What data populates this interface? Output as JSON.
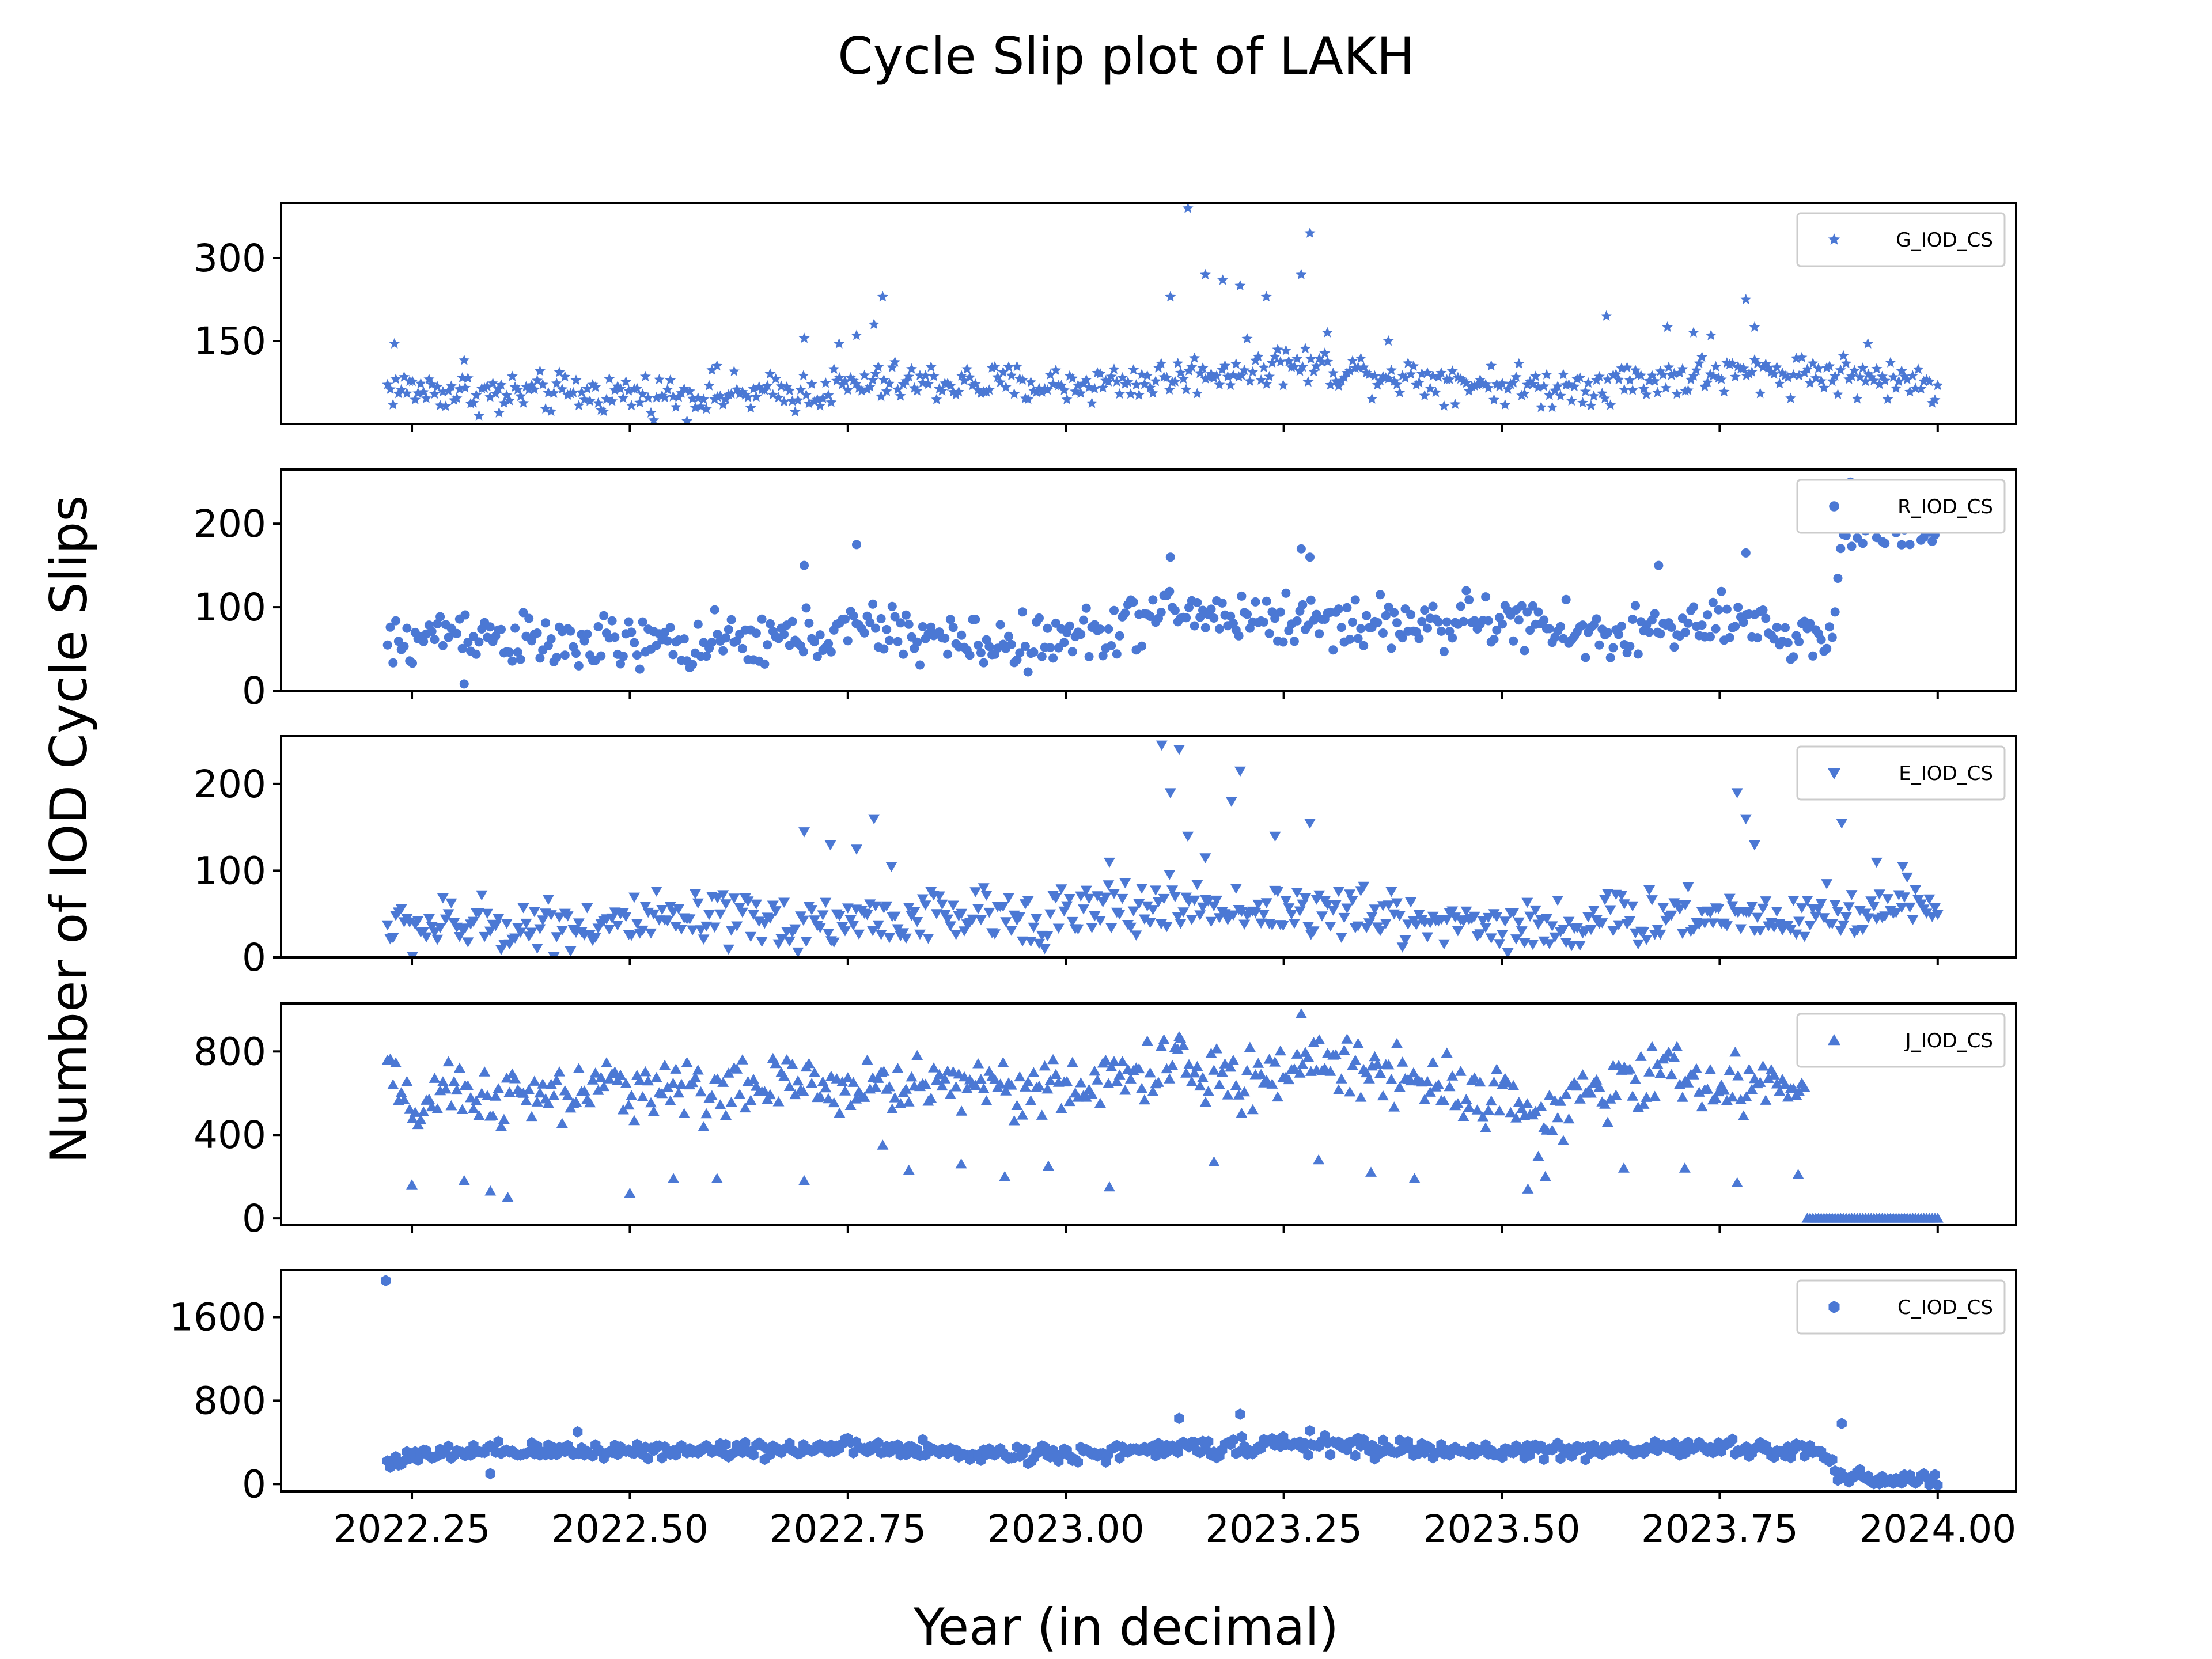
{
  "figure": {
    "title": "Cycle Slip plot of LAKH",
    "xlabel": "Year (in decimal)",
    "ylabel": "Number of IOD Cycle Slips",
    "marker_color": "#4b78d4"
  },
  "chart_data": [
    {
      "type": "scatter",
      "series_name": "G_IOD_CS",
      "marker": "star",
      "xlim": [
        2022.1,
        2024.09
      ],
      "ylim": [
        0,
        400
      ],
      "yticks": [
        150,
        300
      ],
      "xticks": [
        2022.25,
        2022.5,
        2022.75,
        2023.0,
        2023.25,
        2023.5,
        2023.75,
        2024.0
      ],
      "grid": false,
      "legend_position": "top-right",
      "baseline_trend": [
        [
          2022.22,
          65
        ],
        [
          2022.35,
          55
        ],
        [
          2022.5,
          55
        ],
        [
          2022.65,
          52
        ],
        [
          2022.8,
          75
        ],
        [
          2023.0,
          70
        ],
        [
          2023.1,
          80
        ],
        [
          2023.25,
          110
        ],
        [
          2023.4,
          85
        ],
        [
          2023.55,
          65
        ],
        [
          2023.7,
          85
        ],
        [
          2023.85,
          95
        ],
        [
          2024.0,
          70
        ]
      ],
      "spread": 18,
      "peaks": [
        [
          2022.23,
          145
        ],
        [
          2022.31,
          115
        ],
        [
          2022.35,
          20
        ],
        [
          2022.6,
          105
        ],
        [
          2022.7,
          155
        ],
        [
          2022.74,
          145
        ],
        [
          2022.76,
          160
        ],
        [
          2022.78,
          180
        ],
        [
          2022.79,
          230
        ],
        [
          2023.12,
          230
        ],
        [
          2023.14,
          390
        ],
        [
          2023.16,
          270
        ],
        [
          2023.18,
          260
        ],
        [
          2023.2,
          250
        ],
        [
          2023.23,
          230
        ],
        [
          2023.27,
          270
        ],
        [
          2023.28,
          345
        ],
        [
          2023.3,
          165
        ],
        [
          2023.37,
          150
        ],
        [
          2023.62,
          195
        ],
        [
          2023.69,
          175
        ],
        [
          2023.72,
          165
        ],
        [
          2023.74,
          160
        ],
        [
          2023.78,
          225
        ],
        [
          2023.79,
          175
        ],
        [
          2023.92,
          145
        ]
      ]
    },
    {
      "type": "scatter",
      "series_name": "R_IOD_CS",
      "marker": "circle",
      "xlim": [
        2022.1,
        2024.09
      ],
      "ylim": [
        0,
        265
      ],
      "yticks": [
        0,
        100,
        200
      ],
      "xticks": [
        2022.25,
        2022.5,
        2022.75,
        2023.0,
        2023.25,
        2023.5,
        2023.75,
        2024.0
      ],
      "grid": false,
      "legend_position": "top-right",
      "baseline_trend": [
        [
          2022.22,
          50
        ],
        [
          2022.3,
          75
        ],
        [
          2022.4,
          55
        ],
        [
          2022.6,
          55
        ],
        [
          2022.7,
          65
        ],
        [
          2022.78,
          75
        ],
        [
          2022.9,
          55
        ],
        [
          2023.0,
          60
        ],
        [
          2023.12,
          95
        ],
        [
          2023.25,
          85
        ],
        [
          2023.4,
          80
        ],
        [
          2023.5,
          85
        ],
        [
          2023.6,
          65
        ],
        [
          2023.75,
          80
        ],
        [
          2023.88,
          60
        ],
        [
          2023.89,
          195
        ],
        [
          2024.0,
          200
        ]
      ],
      "spread": 16,
      "peaks": [
        [
          2022.31,
          8
        ],
        [
          2022.7,
          150
        ],
        [
          2022.76,
          175
        ],
        [
          2023.12,
          160
        ],
        [
          2023.27,
          170
        ],
        [
          2023.28,
          160
        ],
        [
          2023.68,
          150
        ],
        [
          2023.78,
          165
        ],
        [
          2023.9,
          250
        ],
        [
          2023.93,
          240
        ],
        [
          2023.96,
          235
        ]
      ]
    },
    {
      "type": "scatter",
      "series_name": "E_IOD_CS",
      "marker": "triangle-down",
      "xlim": [
        2022.1,
        2024.09
      ],
      "ylim": [
        0,
        255
      ],
      "yticks": [
        0,
        100,
        200
      ],
      "xticks": [
        2022.25,
        2022.5,
        2022.75,
        2023.0,
        2023.25,
        2023.5,
        2023.75,
        2024.0
      ],
      "grid": false,
      "legend_position": "top-right",
      "baseline_trend": [
        [
          2022.22,
          35
        ],
        [
          2022.5,
          40
        ],
        [
          2022.7,
          40
        ],
        [
          2022.8,
          45
        ],
        [
          2023.0,
          50
        ],
        [
          2023.12,
          60
        ],
        [
          2023.25,
          55
        ],
        [
          2023.4,
          45
        ],
        [
          2023.55,
          35
        ],
        [
          2023.7,
          50
        ],
        [
          2023.85,
          50
        ],
        [
          2024.0,
          60
        ]
      ],
      "spread": 16,
      "peaks": [
        [
          2022.7,
          145
        ],
        [
          2022.73,
          130
        ],
        [
          2022.76,
          125
        ],
        [
          2022.78,
          160
        ],
        [
          2022.8,
          105
        ],
        [
          2023.05,
          110
        ],
        [
          2023.11,
          245
        ],
        [
          2023.12,
          190
        ],
        [
          2023.13,
          240
        ],
        [
          2023.14,
          140
        ],
        [
          2023.16,
          115
        ],
        [
          2023.19,
          180
        ],
        [
          2023.2,
          215
        ],
        [
          2023.24,
          140
        ],
        [
          2023.28,
          155
        ],
        [
          2023.77,
          190
        ],
        [
          2023.78,
          160
        ],
        [
          2023.79,
          130
        ],
        [
          2023.89,
          155
        ],
        [
          2023.93,
          110
        ],
        [
          2023.96,
          105
        ]
      ]
    },
    {
      "type": "scatter",
      "series_name": "J_IOD_CS",
      "marker": "triangle-up",
      "xlim": [
        2022.1,
        2024.09
      ],
      "ylim": [
        -30,
        1030
      ],
      "yticks": [
        0,
        400,
        800
      ],
      "xticks": [
        2022.25,
        2022.5,
        2022.75,
        2023.0,
        2023.25,
        2023.5,
        2023.75,
        2024.0
      ],
      "grid": false,
      "legend_position": "top-right",
      "baseline_trend": [
        [
          2022.22,
          780
        ],
        [
          2022.24,
          500
        ],
        [
          2022.3,
          600
        ],
        [
          2022.4,
          570
        ],
        [
          2022.5,
          640
        ],
        [
          2022.6,
          610
        ],
        [
          2022.7,
          640
        ],
        [
          2022.8,
          630
        ],
        [
          2022.9,
          660
        ],
        [
          2023.0,
          610
        ],
        [
          2023.12,
          740
        ],
        [
          2023.2,
          640
        ],
        [
          2023.28,
          760
        ],
        [
          2023.4,
          680
        ],
        [
          2023.5,
          580
        ],
        [
          2023.55,
          470
        ],
        [
          2023.62,
          610
        ],
        [
          2023.68,
          720
        ],
        [
          2023.75,
          620
        ],
        [
          2023.85,
          650
        ]
      ],
      "spread": 70,
      "zero_run": [
        2023.85,
        2024.0
      ],
      "peaks": [
        [
          2022.25,
          160
        ],
        [
          2022.31,
          180
        ],
        [
          2022.34,
          130
        ],
        [
          2022.36,
          100
        ],
        [
          2022.5,
          120
        ],
        [
          2022.55,
          190
        ],
        [
          2022.6,
          190
        ],
        [
          2022.7,
          180
        ],
        [
          2022.79,
          350
        ],
        [
          2022.82,
          230
        ],
        [
          2022.88,
          260
        ],
        [
          2022.93,
          200
        ],
        [
          2022.98,
          250
        ],
        [
          2023.05,
          150
        ],
        [
          2023.13,
          870
        ],
        [
          2023.17,
          270
        ],
        [
          2023.27,
          980
        ],
        [
          2023.29,
          280
        ],
        [
          2023.35,
          220
        ],
        [
          2023.4,
          190
        ],
        [
          2023.53,
          140
        ],
        [
          2023.55,
          200
        ],
        [
          2023.64,
          240
        ],
        [
          2023.71,
          240
        ],
        [
          2023.77,
          170
        ],
        [
          2023.84,
          210
        ]
      ]
    },
    {
      "type": "scatter",
      "series_name": "C_IOD_CS",
      "marker": "hexagon",
      "xlim": [
        2022.1,
        2024.09
      ],
      "ylim": [
        -70,
        2050
      ],
      "yticks": [
        0,
        800,
        1600
      ],
      "xticks": [
        2022.25,
        2022.5,
        2022.75,
        2023.0,
        2023.25,
        2023.5,
        2023.75,
        2024.0
      ],
      "grid": false,
      "legend_position": "top-right",
      "baseline_trend": [
        [
          2022.22,
          220
        ],
        [
          2022.3,
          300
        ],
        [
          2022.45,
          320
        ],
        [
          2022.6,
          330
        ],
        [
          2022.75,
          350
        ],
        [
          2022.9,
          290
        ],
        [
          2023.05,
          300
        ],
        [
          2023.15,
          350
        ],
        [
          2023.28,
          380
        ],
        [
          2023.45,
          310
        ],
        [
          2023.6,
          330
        ],
        [
          2023.75,
          350
        ],
        [
          2023.87,
          300
        ],
        [
          2023.89,
          60
        ],
        [
          2024.0,
          40
        ]
      ],
      "spread": 40,
      "peaks": [
        [
          2022.22,
          1950
        ],
        [
          2022.34,
          100
        ],
        [
          2022.44,
          500
        ],
        [
          2023.13,
          630
        ],
        [
          2023.2,
          670
        ],
        [
          2023.28,
          510
        ],
        [
          2023.89,
          580
        ]
      ]
    }
  ]
}
